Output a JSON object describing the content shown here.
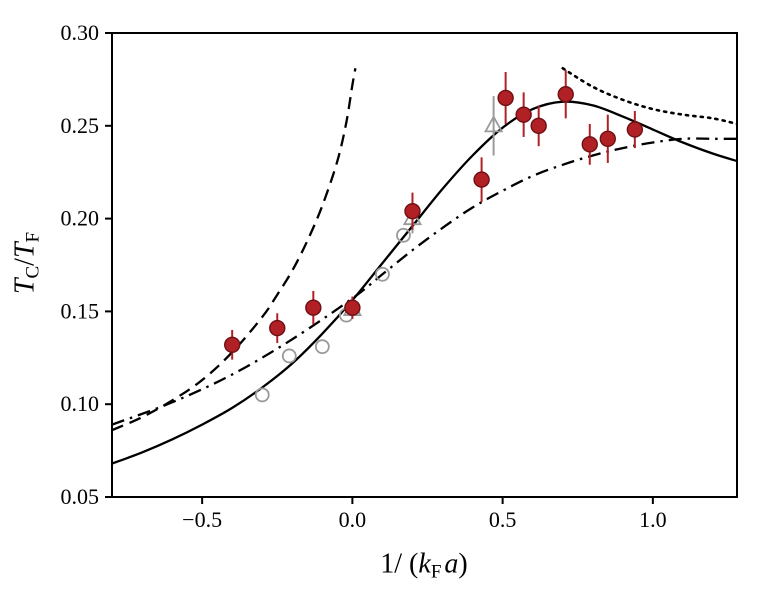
{
  "figure": {
    "background": "#ffffff",
    "axis_color": "#000000"
  },
  "chart_data": {
    "type": "scatter",
    "title": "",
    "xlabel": {
      "prefix": "1/ (",
      "var1": "k",
      "sub": "F",
      "var2": "a",
      "suffix": ")"
    },
    "ylabel": {
      "var1": "T",
      "sub1": "C",
      "slash": "/",
      "var2": "T",
      "sub2": "F"
    },
    "xlim": [
      -0.8,
      1.28
    ],
    "ylim": [
      0.05,
      0.3
    ],
    "grid": false,
    "legend": "none",
    "xticks": [
      {
        "v": -0.5,
        "label": "−0.5"
      },
      {
        "v": 0.0,
        "label": "0.0"
      },
      {
        "v": 0.5,
        "label": "0.5"
      },
      {
        "v": 1.0,
        "label": "1.0"
      }
    ],
    "yticks": [
      {
        "v": 0.05,
        "label": "0.05"
      },
      {
        "v": 0.1,
        "label": "0.10"
      },
      {
        "v": 0.15,
        "label": "0.15"
      },
      {
        "v": 0.2,
        "label": "0.20"
      },
      {
        "v": 0.25,
        "label": "0.25"
      },
      {
        "v": 0.3,
        "label": "0.30"
      }
    ],
    "series": [
      {
        "name": "gray-open-circles",
        "marker": "open-circle",
        "edge": "#9a9a9a",
        "size": 6.5,
        "points": [
          {
            "x": -0.3,
            "y": 0.105
          },
          {
            "x": -0.21,
            "y": 0.126
          },
          {
            "x": -0.1,
            "y": 0.131
          },
          {
            "x": -0.02,
            "y": 0.148
          },
          {
            "x": 0.1,
            "y": 0.17
          },
          {
            "x": 0.17,
            "y": 0.191
          }
        ]
      },
      {
        "name": "gray-open-triangles",
        "marker": "open-triangle",
        "edge": "#9a9a9a",
        "size": 9,
        "points": [
          {
            "x": 0.0,
            "y": 0.151,
            "err": 0.005
          },
          {
            "x": 0.2,
            "y": 0.2,
            "err": 0.008
          },
          {
            "x": 0.47,
            "y": 0.25,
            "err": 0.016
          }
        ]
      },
      {
        "name": "red-filled-circles",
        "marker": "circle",
        "fill": "#b02025",
        "edge": "#6e1014",
        "size": 7.5,
        "points": [
          {
            "x": -0.4,
            "y": 0.132,
            "err": 0.008
          },
          {
            "x": -0.25,
            "y": 0.141,
            "err": 0.008
          },
          {
            "x": -0.13,
            "y": 0.152,
            "err": 0.009
          },
          {
            "x": 0.0,
            "y": 0.152,
            "err": 0.006
          },
          {
            "x": 0.2,
            "y": 0.204,
            "err": 0.01
          },
          {
            "x": 0.43,
            "y": 0.221,
            "err": 0.012
          },
          {
            "x": 0.51,
            "y": 0.265,
            "err": 0.014
          },
          {
            "x": 0.57,
            "y": 0.256,
            "err": 0.012
          },
          {
            "x": 0.62,
            "y": 0.25,
            "err": 0.011
          },
          {
            "x": 0.71,
            "y": 0.267,
            "err": 0.013
          },
          {
            "x": 0.79,
            "y": 0.24,
            "err": 0.011
          },
          {
            "x": 0.85,
            "y": 0.243,
            "err": 0.013
          },
          {
            "x": 0.94,
            "y": 0.248,
            "err": 0.01
          }
        ]
      }
    ],
    "curves": [
      {
        "name": "solid-theory-curve",
        "style": "solid",
        "color": "#000000",
        "width": 2.3,
        "points": [
          [
            -0.8,
            0.068
          ],
          [
            -0.7,
            0.074
          ],
          [
            -0.6,
            0.081
          ],
          [
            -0.5,
            0.089
          ],
          [
            -0.4,
            0.098
          ],
          [
            -0.3,
            0.109
          ],
          [
            -0.2,
            0.122
          ],
          [
            -0.1,
            0.138
          ],
          [
            0.0,
            0.156
          ],
          [
            0.1,
            0.176
          ],
          [
            0.2,
            0.196
          ],
          [
            0.3,
            0.216
          ],
          [
            0.4,
            0.234
          ],
          [
            0.5,
            0.249
          ],
          [
            0.6,
            0.259
          ],
          [
            0.7,
            0.263
          ],
          [
            0.8,
            0.261
          ],
          [
            0.9,
            0.255
          ],
          [
            1.0,
            0.248
          ],
          [
            1.1,
            0.241
          ],
          [
            1.2,
            0.235
          ],
          [
            1.28,
            0.231
          ]
        ]
      },
      {
        "name": "dashed-theory-curve",
        "style": "dashed",
        "color": "#000000",
        "width": 2.3,
        "points": [
          [
            -0.8,
            0.086
          ],
          [
            -0.7,
            0.093
          ],
          [
            -0.6,
            0.102
          ],
          [
            -0.5,
            0.113
          ],
          [
            -0.4,
            0.128
          ],
          [
            -0.3,
            0.147
          ],
          [
            -0.25,
            0.159
          ],
          [
            -0.2,
            0.172
          ],
          [
            -0.15,
            0.188
          ],
          [
            -0.1,
            0.207
          ],
          [
            -0.05,
            0.231
          ],
          [
            -0.02,
            0.252
          ],
          [
            0.0,
            0.272
          ],
          [
            0.01,
            0.281
          ]
        ]
      },
      {
        "name": "dashdot-theory-curve",
        "style": "dashdot",
        "color": "#000000",
        "width": 2.3,
        "points": [
          [
            -0.8,
            0.089
          ],
          [
            -0.6,
            0.101
          ],
          [
            -0.4,
            0.116
          ],
          [
            -0.2,
            0.135
          ],
          [
            0.0,
            0.157
          ],
          [
            0.1,
            0.17
          ],
          [
            0.2,
            0.183
          ],
          [
            0.3,
            0.195
          ],
          [
            0.4,
            0.206
          ],
          [
            0.5,
            0.215
          ],
          [
            0.6,
            0.223
          ],
          [
            0.7,
            0.229
          ],
          [
            0.8,
            0.234
          ],
          [
            0.9,
            0.238
          ],
          [
            1.0,
            0.241
          ],
          [
            1.1,
            0.243
          ],
          [
            1.2,
            0.243
          ],
          [
            1.28,
            0.243
          ]
        ]
      },
      {
        "name": "dotted-theory-curve",
        "style": "dotted",
        "color": "#000000",
        "width": 2.6,
        "points": [
          [
            0.7,
            0.281
          ],
          [
            0.8,
            0.271
          ],
          [
            0.9,
            0.264
          ],
          [
            1.0,
            0.259
          ],
          [
            1.1,
            0.256
          ],
          [
            1.2,
            0.254
          ],
          [
            1.28,
            0.251
          ]
        ]
      }
    ]
  }
}
